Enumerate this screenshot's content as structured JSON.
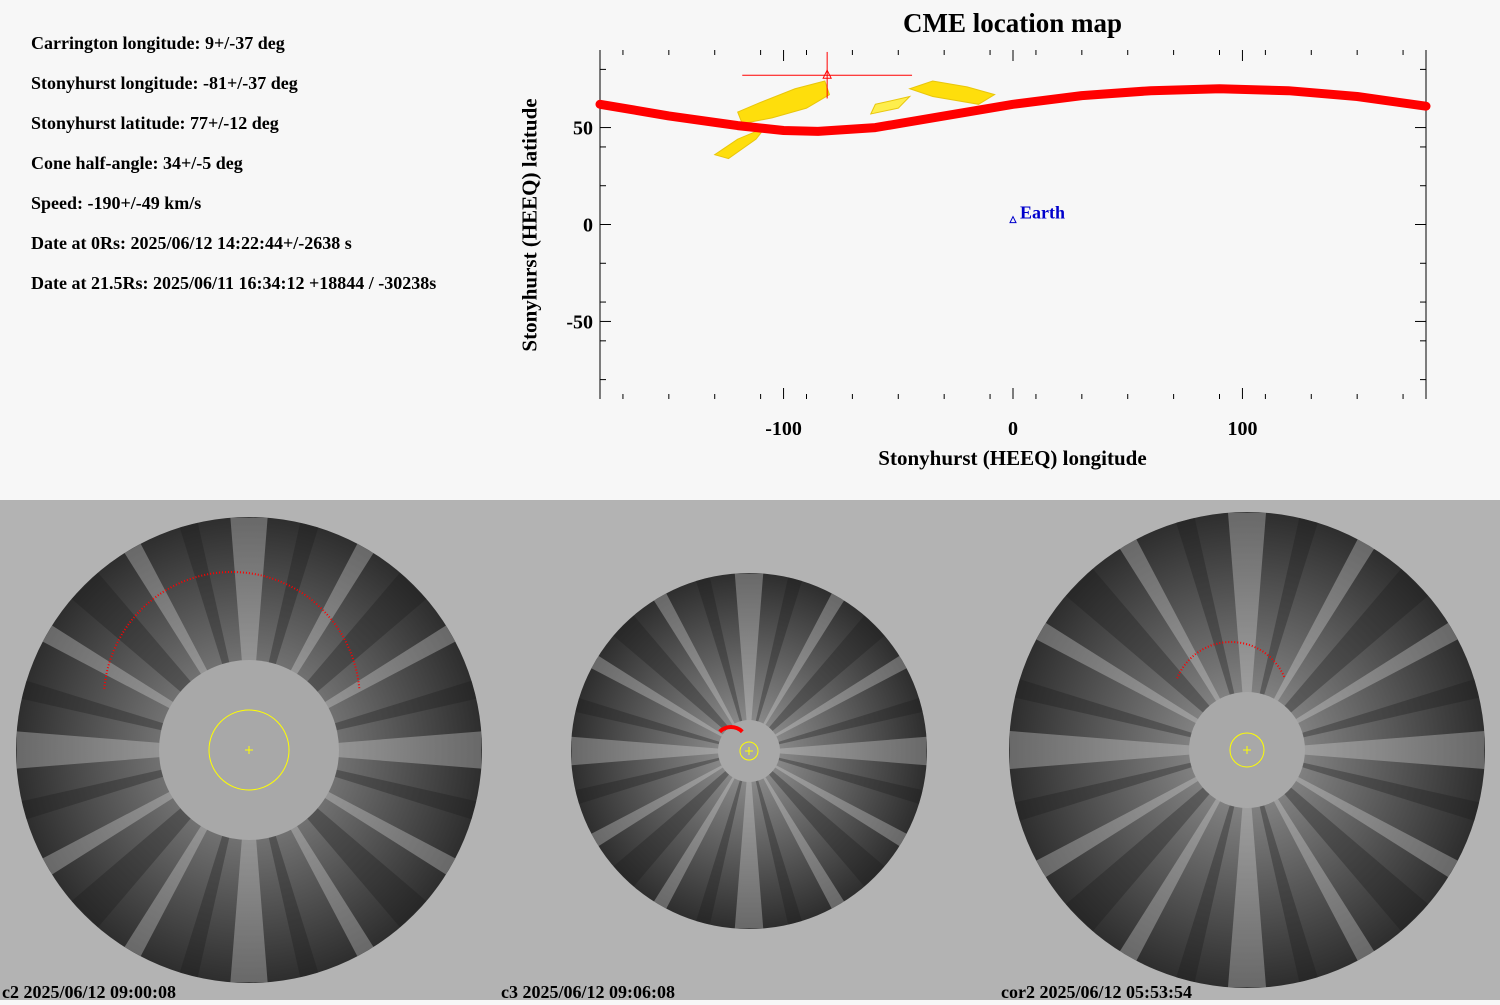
{
  "parameters": {
    "carrington_longitude": "Carrington longitude: 9+/-37 deg",
    "stonyhurst_longitude": "Stonyhurst longitude: -81+/-37 deg",
    "stonyhurst_latitude": "Stonyhurst latitude: 77+/-12 deg",
    "cone_half_angle": "Cone half-angle: 34+/-5 deg",
    "speed": "Speed: -190+/-49 km/s",
    "date_0rs": "Date at 0Rs: 2025/06/12 14:22:44+/-2638 s",
    "date_215rs": "Date at 21.5Rs: 2025/06/11 16:34:12 +18844 / -30238s"
  },
  "chart_data": {
    "type": "scatter",
    "title": "CME location map",
    "xlabel": "Stonyhurst (HEEQ) longitude",
    "ylabel": "Stonyhurst (HEEQ) latitude",
    "xlim": [
      -180,
      180
    ],
    "ylim": [
      -90,
      90
    ],
    "xticks": [
      -100,
      0,
      100
    ],
    "yticks": [
      50,
      0,
      -50
    ],
    "xtick_labels": [
      "-100",
      "0",
      "100"
    ],
    "ytick_labels": [
      "50",
      "0",
      "-50"
    ],
    "grid": false,
    "series": [
      {
        "name": "Earth",
        "marker": "triangle",
        "color": "#0000cc",
        "points": [
          {
            "x": 0,
            "y": 2
          }
        ]
      }
    ],
    "cme_fit": {
      "longitude": -81,
      "longitude_err_minus": 37,
      "longitude_err_plus": 37,
      "latitude": 77,
      "latitude_err": 12,
      "color": "#ff0000"
    },
    "cone_boundary_curve": {
      "color": "#ff0000",
      "points": [
        [
          -180,
          62
        ],
        [
          -150,
          56
        ],
        [
          -120,
          51
        ],
        [
          -100,
          48.5
        ],
        [
          -85,
          48
        ],
        [
          -60,
          50
        ],
        [
          -30,
          56
        ],
        [
          0,
          62
        ],
        [
          30,
          66.5
        ],
        [
          60,
          69
        ],
        [
          90,
          70
        ],
        [
          120,
          69
        ],
        [
          150,
          66
        ],
        [
          180,
          61
        ]
      ]
    },
    "detected_regions": [
      {
        "color": "#ffdd00",
        "points": [
          [
            -120,
            58
          ],
          [
            -110,
            63
          ],
          [
            -95,
            70
          ],
          [
            -82,
            74
          ],
          [
            -80,
            67
          ],
          [
            -90,
            60
          ],
          [
            -105,
            55
          ],
          [
            -118,
            52
          ]
        ]
      },
      {
        "color": "#ffdd00",
        "points": [
          [
            -130,
            36
          ],
          [
            -120,
            44
          ],
          [
            -108,
            50
          ],
          [
            -112,
            44
          ],
          [
            -124,
            34
          ]
        ]
      },
      {
        "color": "#ffdd00",
        "points": [
          [
            -45,
            70
          ],
          [
            -35,
            74
          ],
          [
            -20,
            71
          ],
          [
            -8,
            67
          ],
          [
            -15,
            62
          ],
          [
            -35,
            66
          ]
        ]
      },
      {
        "color": "#ffee44",
        "points": [
          [
            -60,
            62
          ],
          [
            -45,
            66
          ],
          [
            -50,
            60
          ],
          [
            -62,
            57
          ]
        ]
      }
    ]
  },
  "panels": [
    {
      "caption": "c2 2025/06/12 09:00:08"
    },
    {
      "caption": "c3 2025/06/12 09:06:08"
    },
    {
      "caption": "cor2 2025/06/12 05:53:54"
    }
  ],
  "colors": {
    "fit": "#ff0000",
    "earth": "#0000cc",
    "region": "#ffdd00",
    "occulter": "#a8a8a8",
    "sun_outline": "#ffff00",
    "panel_background": "#b3b3b3"
  }
}
